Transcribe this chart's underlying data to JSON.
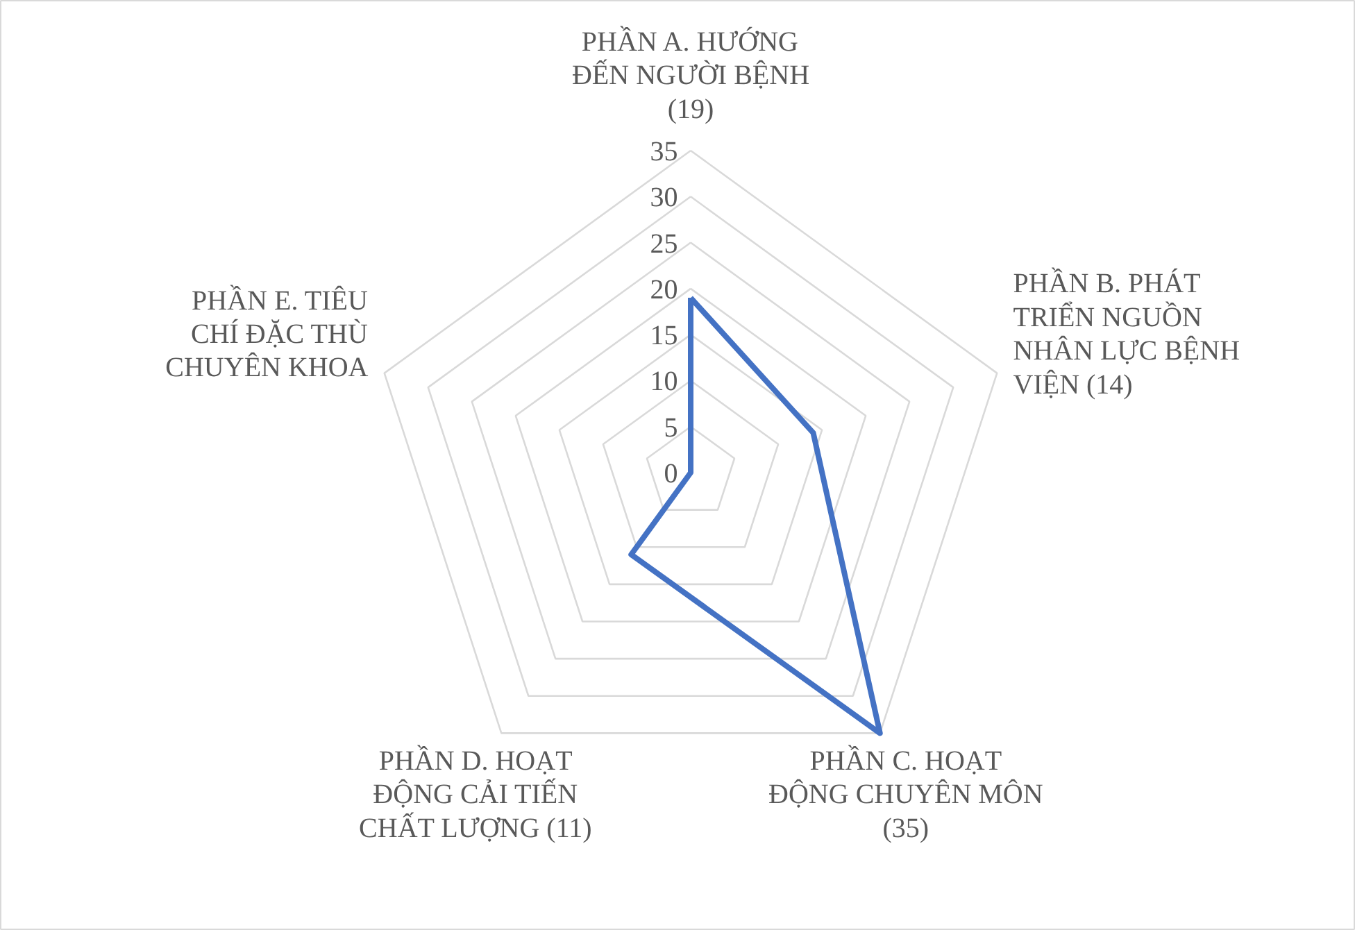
{
  "chart_data": {
    "type": "radar",
    "categories": [
      "PHẦN A. HƯỚNG ĐẾN NGƯỜI BỆNH (19)",
      "PHẦN B. PHÁT TRIỂN NGUỒN NHÂN LỰC BỆNH VIỆN (14)",
      "PHẦN C. HOẠT ĐỘNG CHUYÊN MÔN (35)",
      "PHẦN D. HOẠT ĐỘNG CẢI TIẾN CHẤT LƯỢNG (11)",
      "PHẦN E. TIÊU CHÍ ĐẶC THÙ CHUYÊN KHOA"
    ],
    "series": [
      {
        "color": "#4472c4",
        "values": [
          19,
          14,
          35,
          11,
          0
        ]
      }
    ],
    "ylim": [
      0,
      35
    ],
    "yticks": [
      0,
      5,
      10,
      15,
      20,
      25,
      30,
      35
    ],
    "grid": true,
    "marker": "none",
    "line_style": "solid"
  }
}
